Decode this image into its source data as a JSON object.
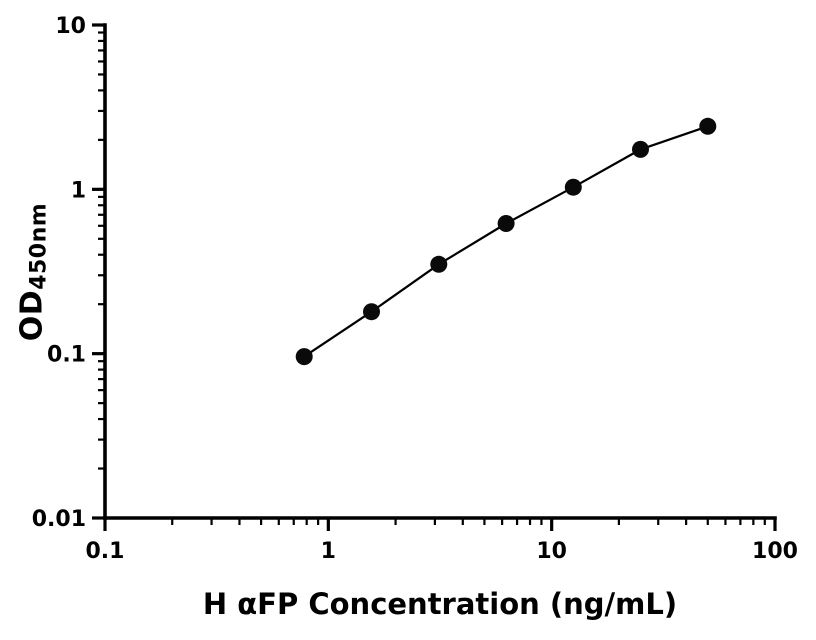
{
  "chart_data": {
    "type": "scatter",
    "title": "",
    "xlabel": "H αFP Concentration (ng/mL)",
    "ylabel_main": "OD",
    "ylabel_sub": "450nm",
    "x_scale": "log",
    "y_scale": "log",
    "xlim": [
      0.1,
      100
    ],
    "ylim": [
      0.01,
      10
    ],
    "x": [
      0.78,
      1.56,
      3.125,
      6.25,
      12.5,
      25,
      50
    ],
    "y": [
      0.096,
      0.18,
      0.35,
      0.62,
      1.03,
      1.75,
      2.42
    ],
    "x_ticks": [
      0.1,
      1,
      10,
      100
    ],
    "x_tick_labels": [
      "0.1",
      "1",
      "10",
      "100"
    ],
    "y_ticks": [
      0.01,
      0.1,
      1,
      10
    ],
    "y_tick_labels": [
      "0.01",
      "0.1",
      "1",
      "10"
    ],
    "grid": false,
    "legend": null,
    "line_color": "#000000",
    "marker_color": "#0a0a0a",
    "axis_color": "#000000",
    "background": "#ffffff",
    "marker_radius": 8.5,
    "connect_points": true
  }
}
